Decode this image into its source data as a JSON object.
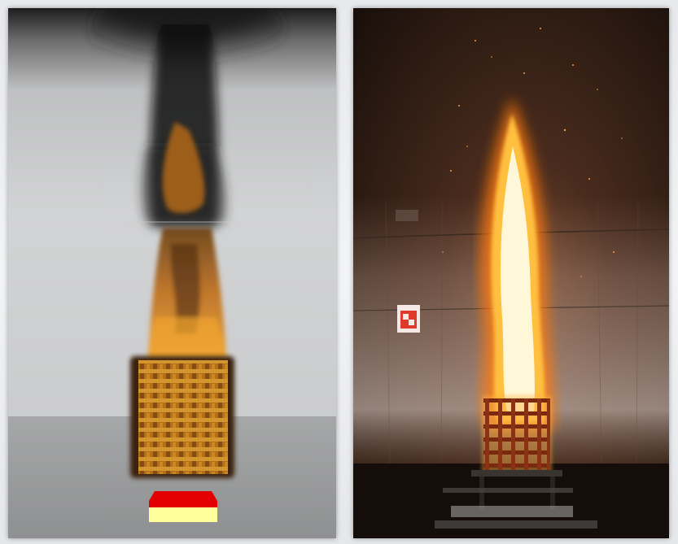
{
  "panels": [
    {
      "id": "simulation",
      "content": "simulated-fire-render",
      "colors": {
        "wall": "#cfd0d1",
        "floor": "#9a9b9c",
        "smoke": "#1a1a1a",
        "flame": "#e08a1f",
        "marker_top": "#e30000",
        "marker_bottom": "#ffff99"
      }
    },
    {
      "id": "photograph",
      "content": "real-fire-test-photo",
      "colors": {
        "background": "#2a1c15",
        "flame_core": "#fff6c8",
        "flame_edge": "#ff7a10",
        "crib": "#7a2810"
      }
    }
  ]
}
